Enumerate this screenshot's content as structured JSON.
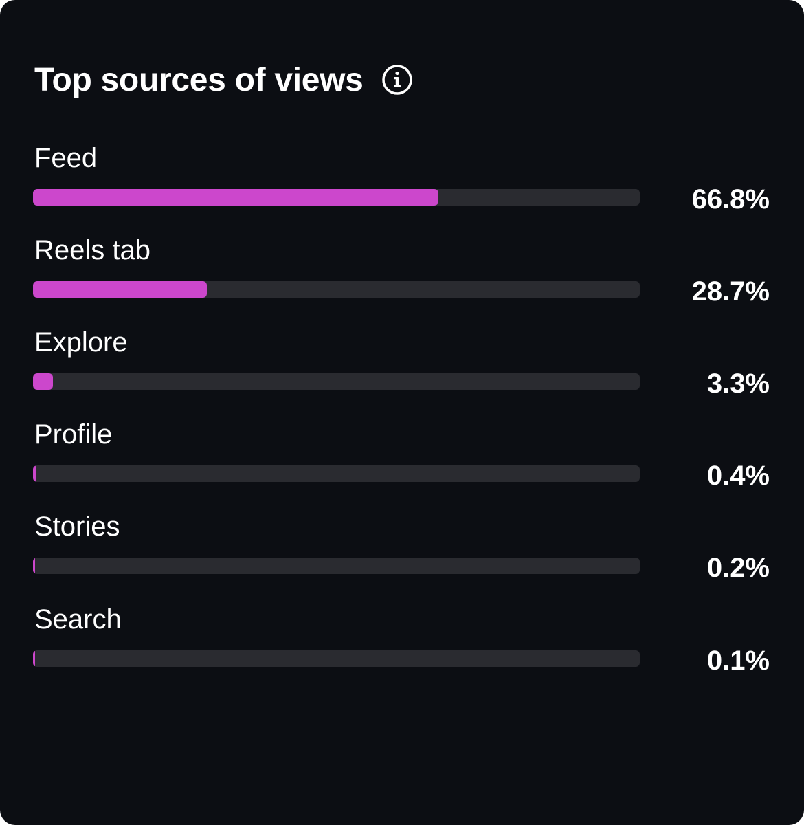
{
  "card": {
    "title": "Top sources of views",
    "info_icon": "info-circle-icon"
  },
  "colors": {
    "background": "#0c0e13",
    "bar_fill": "#cc47cc",
    "bar_track": "#2a2b30",
    "text": "#ffffff"
  },
  "sources": [
    {
      "label": "Feed",
      "percent_text": "66.8%",
      "value": 66.8
    },
    {
      "label": "Reels tab",
      "percent_text": "28.7%",
      "value": 28.7
    },
    {
      "label": "Explore",
      "percent_text": "3.3%",
      "value": 3.3
    },
    {
      "label": "Profile",
      "percent_text": "0.4%",
      "value": 0.4
    },
    {
      "label": "Stories",
      "percent_text": "0.2%",
      "value": 0.2
    },
    {
      "label": "Search",
      "percent_text": "0.1%",
      "value": 0.1
    }
  ]
}
